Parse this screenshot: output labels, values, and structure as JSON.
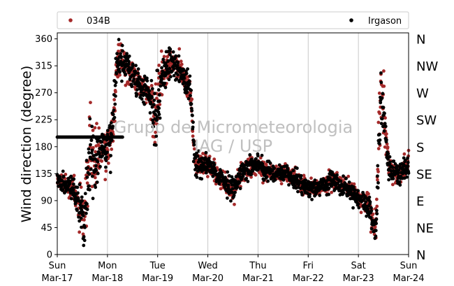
{
  "chart_data": {
    "type": "scatter",
    "ylabel": "Wind direction (degree)",
    "ylim": [
      0,
      370
    ],
    "xlim": [
      0,
      7
    ],
    "yticks": [
      0,
      45,
      90,
      135,
      180,
      225,
      270,
      315,
      360
    ],
    "xticks": [
      {
        "day": "Sun",
        "date": "Mar-17",
        "x": 0
      },
      {
        "day": "Mon",
        "date": "Mar-18",
        "x": 1
      },
      {
        "day": "Tue",
        "date": "Mar-19",
        "x": 2
      },
      {
        "day": "Wed",
        "date": "Mar-20",
        "x": 3
      },
      {
        "day": "Thu",
        "date": "Mar-21",
        "x": 4
      },
      {
        "day": "Fri",
        "date": "Mar-22",
        "x": 5
      },
      {
        "day": "Sat",
        "date": "Mar-23",
        "x": 6
      },
      {
        "day": "Sun",
        "date": "Mar-24",
        "x": 7
      }
    ],
    "compass_labels": [
      {
        "label": "N",
        "deg": 0
      },
      {
        "label": "NE",
        "deg": 45
      },
      {
        "label": "E",
        "deg": 90
      },
      {
        "label": "SE",
        "deg": 135
      },
      {
        "label": "S",
        "deg": 180
      },
      {
        "label": "SW",
        "deg": 225
      },
      {
        "label": "W",
        "deg": 270
      },
      {
        "label": "NW",
        "deg": 315
      },
      {
        "label": "N",
        "deg": 360
      }
    ],
    "grid": "vertical",
    "legend_position": "top",
    "watermark": [
      "Grupo de Micrometeorologia",
      "IAG / USP"
    ],
    "series": [
      {
        "name": "034B",
        "color": "#a52a2a",
        "profile": [
          {
            "x": 0.0,
            "y": 125,
            "spread": 14
          },
          {
            "x": 0.15,
            "y": 118,
            "spread": 14
          },
          {
            "x": 0.3,
            "y": 110,
            "spread": 18
          },
          {
            "x": 0.45,
            "y": 75,
            "spread": 30
          },
          {
            "x": 0.55,
            "y": 55,
            "spread": 40
          },
          {
            "x": 0.65,
            "y": 180,
            "spread": 70
          },
          {
            "x": 0.75,
            "y": 150,
            "spread": 40
          },
          {
            "x": 0.85,
            "y": 170,
            "spread": 30
          },
          {
            "x": 1.0,
            "y": 175,
            "spread": 30
          },
          {
            "x": 1.1,
            "y": 210,
            "spread": 40
          },
          {
            "x": 1.2,
            "y": 320,
            "spread": 25
          },
          {
            "x": 1.4,
            "y": 315,
            "spread": 22
          },
          {
            "x": 1.6,
            "y": 285,
            "spread": 20
          },
          {
            "x": 1.8,
            "y": 270,
            "spread": 18
          },
          {
            "x": 1.95,
            "y": 240,
            "spread": 50
          },
          {
            "x": 2.1,
            "y": 300,
            "spread": 40
          },
          {
            "x": 2.3,
            "y": 320,
            "spread": 20
          },
          {
            "x": 2.5,
            "y": 300,
            "spread": 20
          },
          {
            "x": 2.65,
            "y": 275,
            "spread": 20
          },
          {
            "x": 2.75,
            "y": 150,
            "spread": 18
          },
          {
            "x": 3.0,
            "y": 150,
            "spread": 14
          },
          {
            "x": 3.3,
            "y": 125,
            "spread": 14
          },
          {
            "x": 3.5,
            "y": 105,
            "spread": 18
          },
          {
            "x": 3.7,
            "y": 140,
            "spread": 16
          },
          {
            "x": 4.0,
            "y": 150,
            "spread": 14
          },
          {
            "x": 4.3,
            "y": 135,
            "spread": 14
          },
          {
            "x": 4.6,
            "y": 135,
            "spread": 14
          },
          {
            "x": 4.9,
            "y": 115,
            "spread": 14
          },
          {
            "x": 5.2,
            "y": 110,
            "spread": 14
          },
          {
            "x": 5.5,
            "y": 125,
            "spread": 16
          },
          {
            "x": 5.8,
            "y": 110,
            "spread": 14
          },
          {
            "x": 6.0,
            "y": 95,
            "spread": 14
          },
          {
            "x": 6.2,
            "y": 80,
            "spread": 18
          },
          {
            "x": 6.35,
            "y": 40,
            "spread": 25
          },
          {
            "x": 6.45,
            "y": 290,
            "spread": 60
          },
          {
            "x": 6.6,
            "y": 145,
            "spread": 18
          },
          {
            "x": 6.8,
            "y": 130,
            "spread": 16
          },
          {
            "x": 7.0,
            "y": 150,
            "spread": 16
          }
        ]
      },
      {
        "name": "Irgason",
        "color": "#000000",
        "profile": [
          {
            "x": 0.0,
            "y": 125,
            "spread": 14
          },
          {
            "x": 0.15,
            "y": 118,
            "spread": 14
          },
          {
            "x": 0.3,
            "y": 110,
            "spread": 18
          },
          {
            "x": 0.45,
            "y": 75,
            "spread": 30
          },
          {
            "x": 0.55,
            "y": 55,
            "spread": 40
          },
          {
            "x": 0.65,
            "y": 180,
            "spread": 70
          },
          {
            "x": 0.75,
            "y": 150,
            "spread": 40
          },
          {
            "x": 0.85,
            "y": 170,
            "spread": 30
          },
          {
            "x": 1.0,
            "y": 175,
            "spread": 30
          },
          {
            "x": 1.1,
            "y": 210,
            "spread": 40
          },
          {
            "x": 1.2,
            "y": 320,
            "spread": 25
          },
          {
            "x": 1.4,
            "y": 315,
            "spread": 22
          },
          {
            "x": 1.6,
            "y": 285,
            "spread": 20
          },
          {
            "x": 1.8,
            "y": 270,
            "spread": 18
          },
          {
            "x": 1.95,
            "y": 240,
            "spread": 50
          },
          {
            "x": 2.1,
            "y": 300,
            "spread": 40
          },
          {
            "x": 2.3,
            "y": 320,
            "spread": 20
          },
          {
            "x": 2.5,
            "y": 300,
            "spread": 20
          },
          {
            "x": 2.65,
            "y": 275,
            "spread": 20
          },
          {
            "x": 2.75,
            "y": 150,
            "spread": 18
          },
          {
            "x": 3.0,
            "y": 150,
            "spread": 14
          },
          {
            "x": 3.3,
            "y": 125,
            "spread": 14
          },
          {
            "x": 3.5,
            "y": 105,
            "spread": 18
          },
          {
            "x": 3.7,
            "y": 140,
            "spread": 16
          },
          {
            "x": 4.0,
            "y": 150,
            "spread": 14
          },
          {
            "x": 4.3,
            "y": 135,
            "spread": 14
          },
          {
            "x": 4.6,
            "y": 135,
            "spread": 14
          },
          {
            "x": 4.9,
            "y": 115,
            "spread": 14
          },
          {
            "x": 5.2,
            "y": 110,
            "spread": 14
          },
          {
            "x": 5.5,
            "y": 125,
            "spread": 16
          },
          {
            "x": 5.8,
            "y": 110,
            "spread": 14
          },
          {
            "x": 6.0,
            "y": 95,
            "spread": 14
          },
          {
            "x": 6.2,
            "y": 80,
            "spread": 18
          },
          {
            "x": 6.35,
            "y": 40,
            "spread": 25
          },
          {
            "x": 6.45,
            "y": 290,
            "spread": 60
          },
          {
            "x": 6.6,
            "y": 145,
            "spread": 18
          },
          {
            "x": 6.8,
            "y": 130,
            "spread": 16
          },
          {
            "x": 7.0,
            "y": 150,
            "spread": 16
          }
        ],
        "constant_segments": [
          {
            "x_start": 0.0,
            "x_end": 1.3,
            "y": 196
          }
        ]
      }
    ]
  }
}
